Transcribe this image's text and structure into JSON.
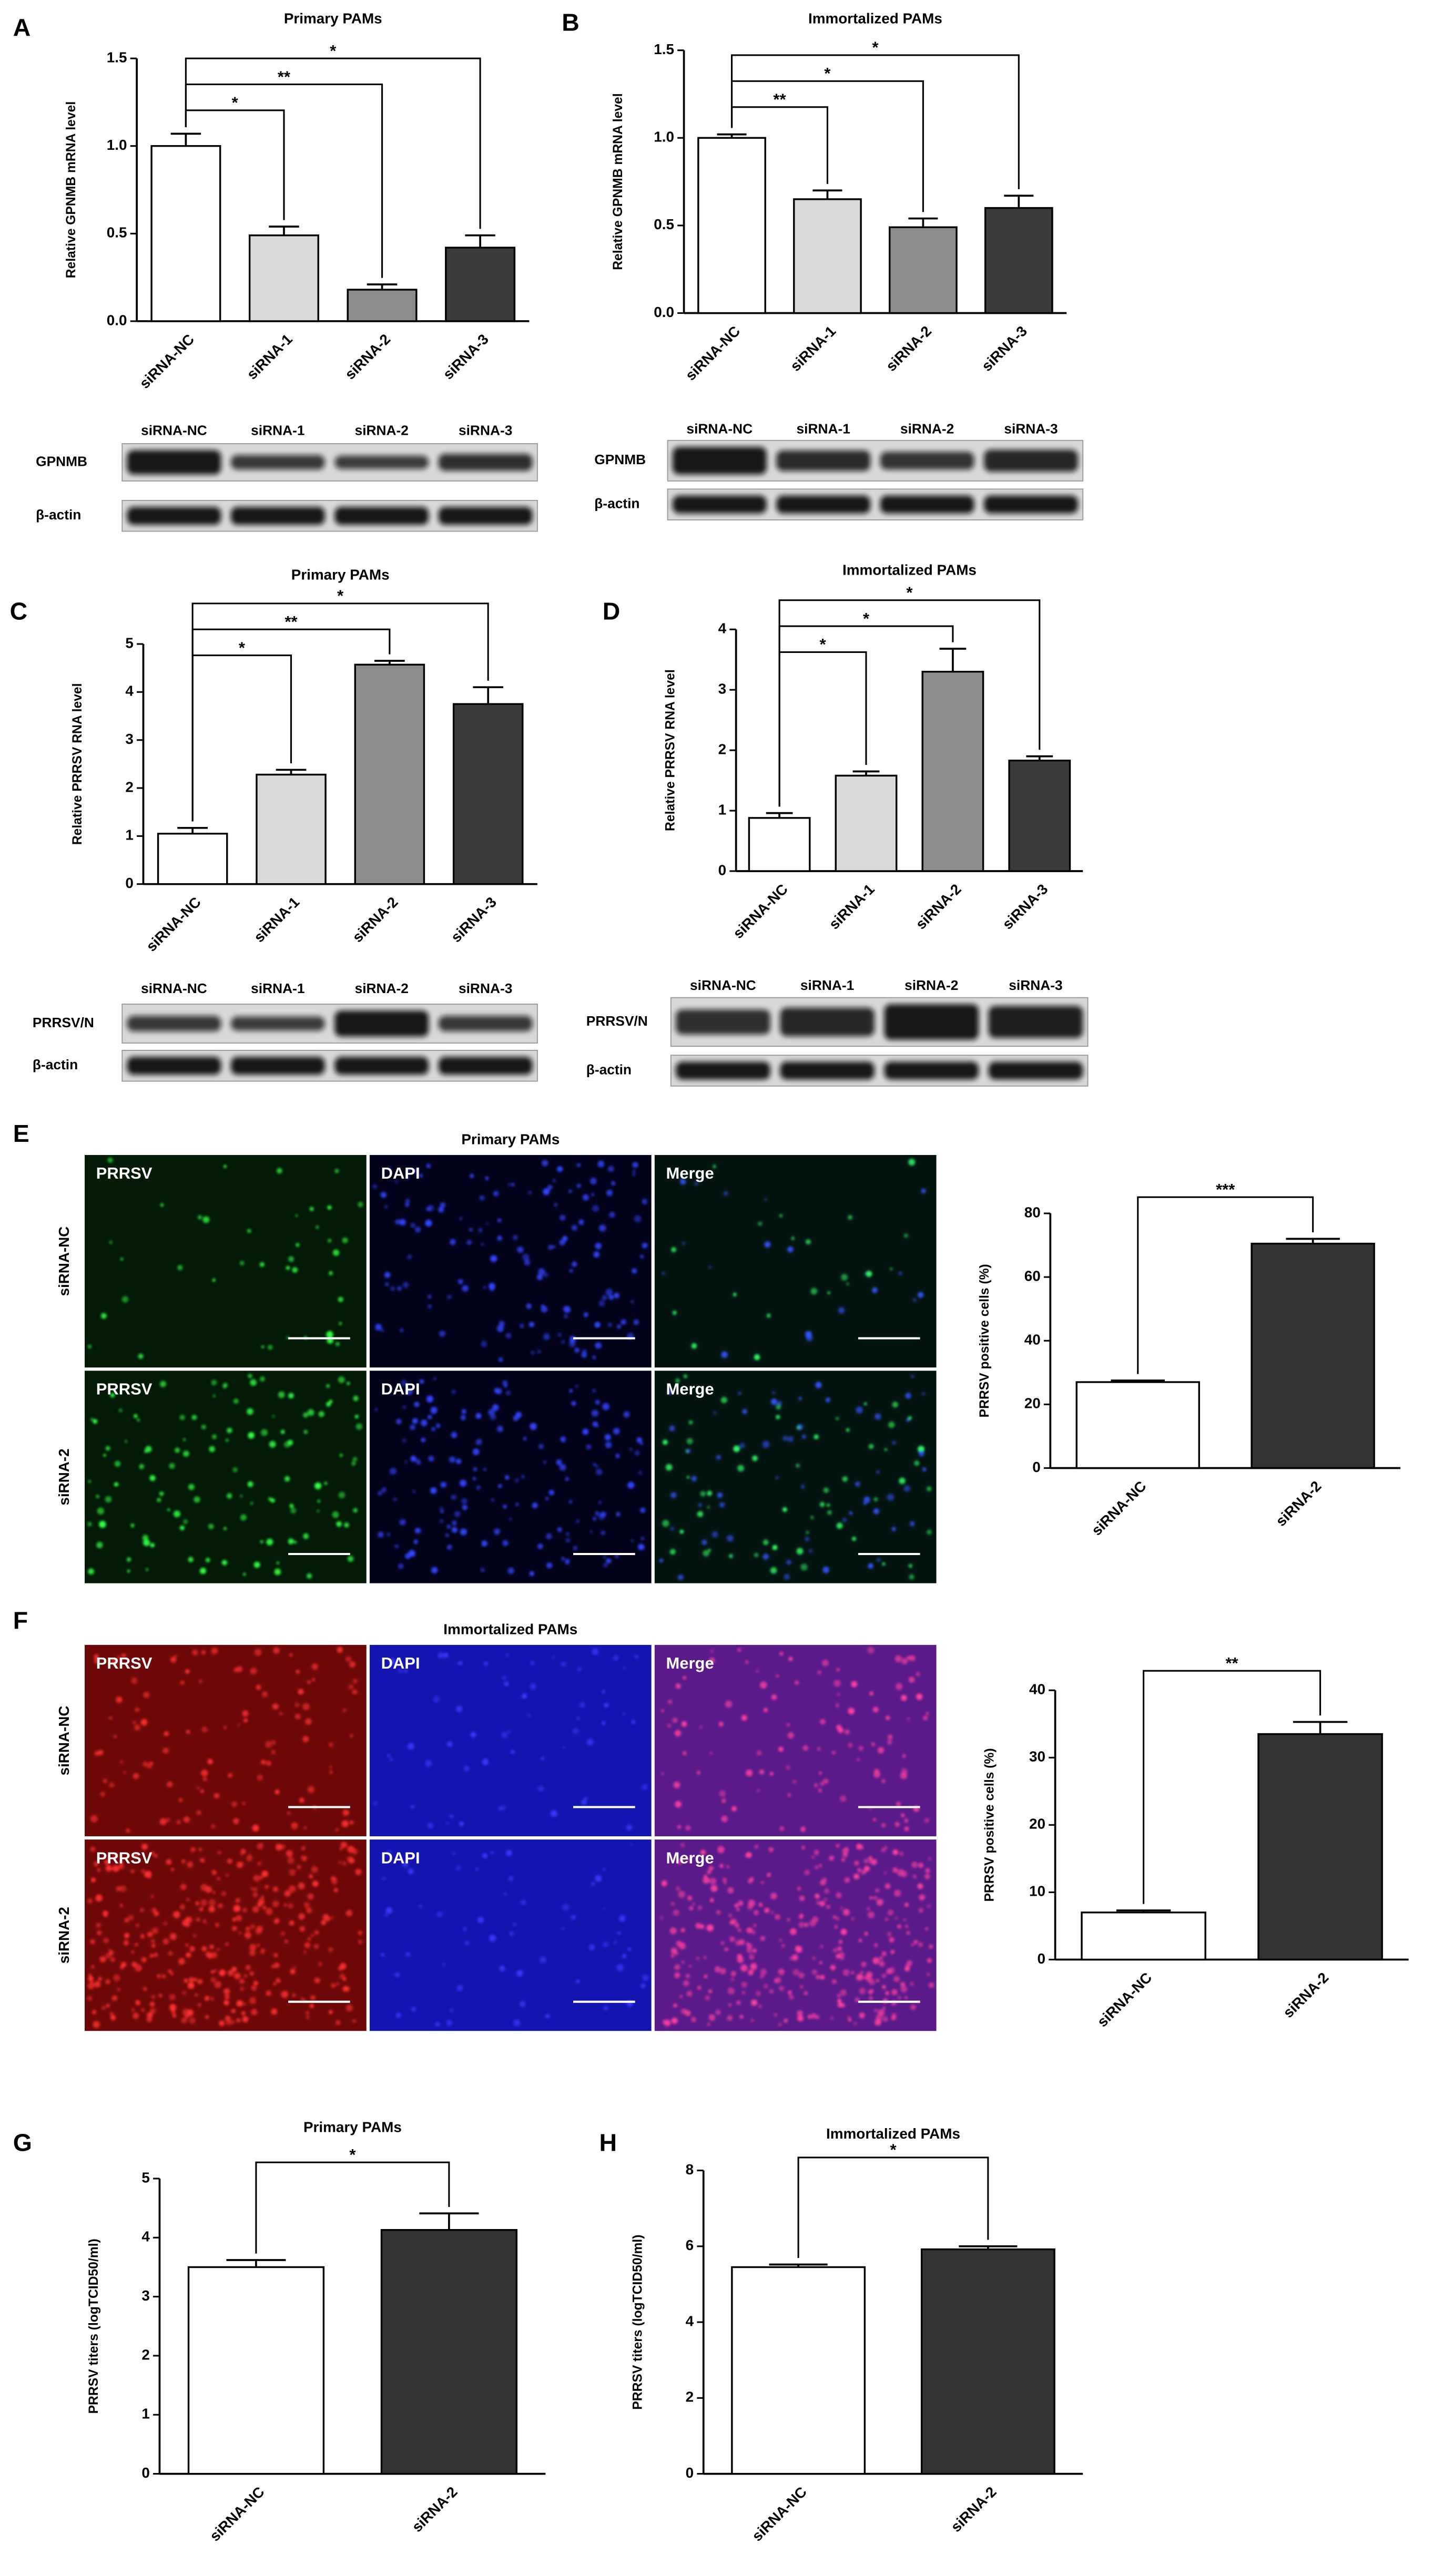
{
  "chart_data": [
    {
      "type": "bar",
      "panel": "A",
      "title": "Primary PAMs",
      "ylabel": "Relative GPNMB mRNA level",
      "categories": [
        "siRNA-NC",
        "siRNA-1",
        "siRNA-2",
        "siRNA-3"
      ],
      "values": [
        1.0,
        0.49,
        0.18,
        0.42
      ],
      "errors": [
        0.07,
        0.05,
        0.03,
        0.07
      ],
      "colors": [
        "#ffffff",
        "#d9d9d9",
        "#8c8c8c",
        "#3a3a3a"
      ],
      "ylim": [
        0,
        1.5
      ],
      "yticks": [
        {
          "value": 0,
          "label": "0.0"
        },
        0.5,
        {
          "value": 1,
          "label": "1.0"
        },
        1.5
      ],
      "annotations": [
        {
          "text": "*",
          "between": [
            "siRNA-NC",
            "siRNA-1"
          ]
        },
        {
          "text": "**",
          "between": [
            "siRNA-NC",
            "siRNA-2"
          ]
        },
        {
          "text": "*",
          "between": [
            "siRNA-NC",
            "siRNA-3"
          ]
        }
      ]
    },
    {
      "type": "bar",
      "panel": "B",
      "title": "Immortalized PAMs",
      "ylabel": "Relative GPNMB mRNA level",
      "categories": [
        "siRNA-NC",
        "siRNA-1",
        "siRNA-2",
        "siRNA-3"
      ],
      "values": [
        1.0,
        0.65,
        0.49,
        0.6
      ],
      "errors": [
        0.02,
        0.05,
        0.05,
        0.07
      ],
      "colors": [
        "#ffffff",
        "#d9d9d9",
        "#8c8c8c",
        "#3a3a3a"
      ],
      "ylim": [
        0,
        1.5
      ],
      "yticks": [
        {
          "value": 0,
          "label": "0.0"
        },
        0.5,
        {
          "value": 1,
          "label": "1.0"
        },
        1.5
      ],
      "annotations": [
        {
          "text": "**",
          "between": [
            "siRNA-NC",
            "siRNA-1"
          ]
        },
        {
          "text": "*",
          "between": [
            "siRNA-NC",
            "siRNA-2"
          ]
        },
        {
          "text": "*",
          "between": [
            "siRNA-NC",
            "siRNA-3"
          ]
        }
      ]
    },
    {
      "type": "bar",
      "panel": "C",
      "title": "Primary PAMs",
      "ylabel": "Relative PRRSV RNA level",
      "categories": [
        "siRNA-NC",
        "siRNA-1",
        "siRNA-2",
        "siRNA-3"
      ],
      "values": [
        1.05,
        2.28,
        4.57,
        3.75
      ],
      "errors": [
        0.12,
        0.1,
        0.08,
        0.35
      ],
      "colors": [
        "#ffffff",
        "#d9d9d9",
        "#8c8c8c",
        "#3a3a3a"
      ],
      "ylim": [
        0,
        5
      ],
      "yticks": [
        0,
        1,
        2,
        3,
        4,
        5
      ],
      "annotations": [
        {
          "text": "*",
          "between": [
            "siRNA-NC",
            "siRNA-1"
          ]
        },
        {
          "text": "**",
          "between": [
            "siRNA-NC",
            "siRNA-2"
          ]
        },
        {
          "text": "*",
          "between": [
            "siRNA-NC",
            "siRNA-3"
          ]
        }
      ]
    },
    {
      "type": "bar",
      "panel": "D",
      "title": "Immortalized PAMs",
      "ylabel": "Relative PRRSV RNA level",
      "categories": [
        "siRNA-NC",
        "siRNA-1",
        "siRNA-2",
        "siRNA-3"
      ],
      "values": [
        0.88,
        1.58,
        3.3,
        1.83
      ],
      "errors": [
        0.08,
        0.07,
        0.38,
        0.07
      ],
      "colors": [
        "#ffffff",
        "#d9d9d9",
        "#8c8c8c",
        "#3a3a3a"
      ],
      "ylim": [
        0,
        4
      ],
      "yticks": [
        0,
        1,
        2,
        3,
        4
      ],
      "annotations": [
        {
          "text": "*",
          "between": [
            "siRNA-NC",
            "siRNA-1"
          ]
        },
        {
          "text": "*",
          "between": [
            "siRNA-NC",
            "siRNA-2"
          ]
        },
        {
          "text": "*",
          "between": [
            "siRNA-NC",
            "siRNA-3"
          ]
        }
      ]
    },
    {
      "type": "bar",
      "panel": "E",
      "ylabel": "PRRSV positive cells (%)",
      "categories": [
        "siRNA-NC",
        "siRNA-2"
      ],
      "values": [
        27,
        70.5
      ],
      "errors": [
        0.5,
        1.5
      ],
      "colors": [
        "#ffffff",
        "#333333"
      ],
      "ylim": [
        0,
        80
      ],
      "yticks": [
        0,
        20,
        40,
        60,
        80
      ],
      "annotations": [
        {
          "text": "***",
          "between": [
            "siRNA-NC",
            "siRNA-2"
          ]
        }
      ]
    },
    {
      "type": "bar",
      "panel": "F",
      "ylabel": "PRRSV positive cells (%)",
      "categories": [
        "siRNA-NC",
        "siRNA-2"
      ],
      "values": [
        7,
        33.5
      ],
      "errors": [
        0.3,
        1.8
      ],
      "colors": [
        "#ffffff",
        "#333333"
      ],
      "ylim": [
        0,
        40
      ],
      "yticks": [
        0,
        10,
        20,
        30,
        40
      ],
      "annotations": [
        {
          "text": "**",
          "between": [
            "siRNA-NC",
            "siRNA-2"
          ]
        }
      ]
    },
    {
      "type": "bar",
      "panel": "G",
      "title": "Primary PAMs",
      "ylabel": "PRRSV titers (logTCID50/ml)",
      "categories": [
        "siRNA-NC",
        "siRNA-2"
      ],
      "values": [
        3.5,
        4.13
      ],
      "errors": [
        0.12,
        0.28
      ],
      "colors": [
        "#ffffff",
        "#333333"
      ],
      "ylim": [
        0,
        5
      ],
      "yticks": [
        0,
        1,
        2,
        3,
        4,
        5
      ],
      "annotations": [
        {
          "text": "*",
          "between": [
            "siRNA-NC",
            "siRNA-2"
          ]
        }
      ]
    },
    {
      "type": "bar",
      "panel": "H",
      "title": "Immortalized PAMs",
      "ylabel": "PRRSV titers (logTCID50/ml)",
      "categories": [
        "siRNA-NC",
        "siRNA-2"
      ],
      "values": [
        5.45,
        5.92
      ],
      "errors": [
        0.07,
        0.08
      ],
      "colors": [
        "#ffffff",
        "#333333"
      ],
      "ylim": [
        0,
        8
      ],
      "yticks": [
        0,
        2,
        4,
        6,
        8
      ],
      "annotations": [
        {
          "text": "*",
          "between": [
            "siRNA-NC",
            "siRNA-2"
          ]
        }
      ]
    }
  ],
  "blots": [
    {
      "lanes": [
        "siRNA-NC",
        "siRNA-1",
        "siRNA-2",
        "siRNA-3"
      ],
      "rows": [
        "GPNMB",
        "β-actin"
      ]
    },
    {
      "lanes": [
        "siRNA-NC",
        "siRNA-1",
        "siRNA-2",
        "siRNA-3"
      ],
      "rows": [
        "GPNMB",
        "β-actin"
      ]
    },
    {
      "lanes": [
        "siRNA-NC",
        "siRNA-1",
        "siRNA-2",
        "siRNA-3"
      ],
      "rows": [
        "PRRSV/N",
        "β-actin"
      ]
    },
    {
      "lanes": [
        "siRNA-NC",
        "siRNA-1",
        "siRNA-2",
        "siRNA-3"
      ],
      "rows": [
        "PRRSV/N",
        "β-actin"
      ]
    }
  ],
  "microscopy": [
    {
      "title": "Primary PAMs",
      "rows": [
        "siRNA-NC",
        "siRNA-2"
      ],
      "channels": [
        "PRRSV",
        "DAPI",
        "Merge"
      ]
    },
    {
      "title": "Immortalized PAMs",
      "rows": [
        "siRNA-NC",
        "siRNA-2"
      ],
      "channels": [
        "PRRSV",
        "DAPI",
        "Merge"
      ]
    }
  ]
}
